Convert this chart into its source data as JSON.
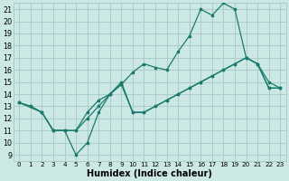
{
  "title": "",
  "xlabel": "Humidex (Indice chaleur)",
  "ylabel": "",
  "bg_color": "#cce8e5",
  "grid_color": "#aaccca",
  "line_color": "#1a7a6e",
  "marker_color": "#1a7a6e",
  "xlim": [
    -0.5,
    23.5
  ],
  "ylim": [
    8.5,
    21.5
  ],
  "xticks": [
    0,
    1,
    2,
    3,
    4,
    5,
    6,
    7,
    8,
    9,
    10,
    11,
    12,
    13,
    14,
    15,
    16,
    17,
    18,
    19,
    20,
    21,
    22,
    23
  ],
  "yticks": [
    9,
    10,
    11,
    12,
    13,
    14,
    15,
    16,
    17,
    18,
    19,
    20,
    21
  ],
  "line1_x": [
    0,
    1,
    2,
    3,
    4,
    5,
    6,
    7,
    8,
    9,
    10,
    11,
    12,
    13,
    14,
    15,
    16,
    17,
    18,
    19,
    20,
    21,
    22,
    23
  ],
  "line1_y": [
    13.3,
    13.0,
    12.5,
    11.0,
    11.0,
    11.0,
    12.5,
    13.5,
    14.0,
    15.0,
    12.5,
    12.5,
    13.0,
    13.5,
    14.0,
    14.5,
    15.0,
    15.5,
    16.0,
    16.5,
    17.0,
    16.5,
    14.5,
    14.5
  ],
  "line2_x": [
    0,
    2,
    3,
    4,
    5,
    6,
    7,
    8,
    9,
    10,
    11,
    12,
    13,
    14,
    15,
    16,
    17,
    18,
    19,
    20,
    21,
    22,
    23
  ],
  "line2_y": [
    13.3,
    12.5,
    11.0,
    11.0,
    9.0,
    10.0,
    12.5,
    14.0,
    14.8,
    12.5,
    12.5,
    13.0,
    13.5,
    14.0,
    14.5,
    15.0,
    15.5,
    16.0,
    16.5,
    17.0,
    16.5,
    14.5,
    14.5
  ],
  "line3_x": [
    0,
    1,
    2,
    3,
    4,
    5,
    6,
    7,
    8,
    9,
    10,
    11,
    12,
    13,
    14,
    15,
    16,
    17,
    18,
    19,
    20,
    21,
    22,
    23
  ],
  "line3_y": [
    13.3,
    13.0,
    12.5,
    11.0,
    11.0,
    11.0,
    12.0,
    13.0,
    14.0,
    14.8,
    15.8,
    16.5,
    16.2,
    16.0,
    17.5,
    18.8,
    21.0,
    20.5,
    21.5,
    21.0,
    17.0,
    16.5,
    15.0,
    14.5
  ]
}
